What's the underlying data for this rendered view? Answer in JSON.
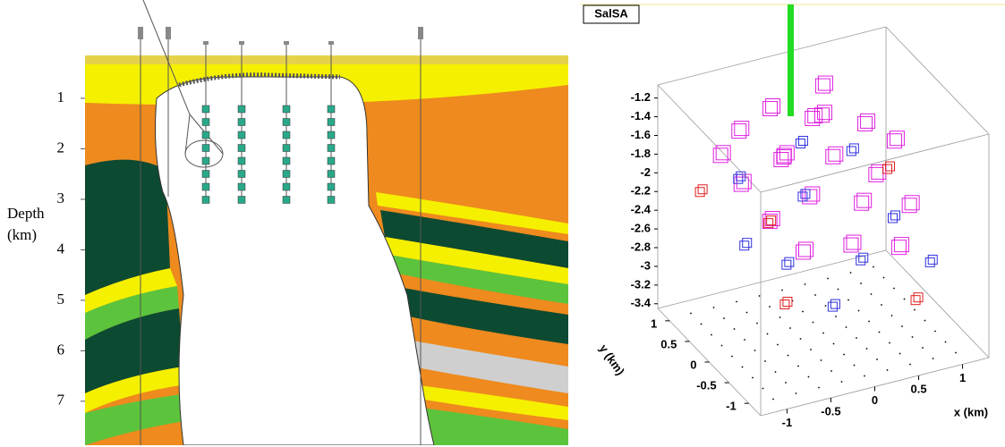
{
  "cross_section": {
    "ylabel_lines": [
      "Depth",
      "(km)"
    ],
    "yticks": [
      1,
      2,
      3,
      4,
      5,
      6,
      7
    ],
    "ylim": [
      0,
      7.8
    ]
  },
  "salsa": {
    "title": "SalSA",
    "xlabel": "x (km)",
    "ylabel": "y (km)",
    "xlim": [
      -1.3,
      1.3
    ],
    "ylim": [
      -1.3,
      1.3
    ],
    "zlim": [
      -3.45,
      -1.06
    ],
    "xticks": [
      -1,
      -0.5,
      0,
      0.5,
      1
    ],
    "yticks": [
      1,
      0.5,
      0,
      -0.5,
      -1
    ],
    "zticks": [
      -1.2,
      -1.4,
      -1.6,
      -1.8,
      -2,
      -2.2,
      -2.4,
      -2.6,
      -2.8,
      -3,
      -3.2,
      -3.4
    ],
    "series": [
      {
        "color": "#e020e0",
        "points": [
          [
            -0.6,
            0.8,
            -1.5
          ],
          [
            -0.2,
            0.9,
            -1.4
          ],
          [
            0.3,
            0.7,
            -1.5
          ],
          [
            0.7,
            0.5,
            -1.6
          ],
          [
            -0.8,
            0.3,
            -1.8
          ],
          [
            -0.3,
            0.4,
            -1.7
          ],
          [
            0.2,
            0.2,
            -1.7
          ],
          [
            0.6,
            0,
            -1.9
          ],
          [
            -0.7,
            -0.2,
            -2
          ],
          [
            -0.2,
            -0.1,
            -1.9
          ],
          [
            0.3,
            -0.3,
            -2
          ],
          [
            0.8,
            -0.4,
            -2.1
          ],
          [
            -0.5,
            -0.6,
            -2.2
          ],
          [
            0,
            -0.7,
            -2.2
          ],
          [
            0.5,
            -0.8,
            -2.3
          ],
          [
            -0.9,
            0.6,
            -1.6
          ],
          [
            0.1,
            0.5,
            -1.4
          ],
          [
            -0.4,
            0.1,
            -1.5
          ],
          [
            0.4,
            0.9,
            -1.3
          ],
          [
            0.9,
            0.2,
            -1.7
          ]
        ]
      },
      {
        "color": "#3030e0",
        "points": [
          [
            -0.7,
            0.6,
            -1.9
          ],
          [
            -0.1,
            0.3,
            -2.1
          ],
          [
            0.5,
            0.4,
            -1.8
          ],
          [
            -0.6,
            -0.4,
            -2.4
          ],
          [
            0.2,
            -0.5,
            -2.5
          ],
          [
            0.7,
            -0.2,
            -2.3
          ],
          [
            -0.3,
            -0.9,
            -2.7
          ],
          [
            0.9,
            -0.7,
            -2.6
          ],
          [
            0.1,
            0.8,
            -1.8
          ],
          [
            -0.9,
            0,
            -2.3
          ]
        ]
      },
      {
        "color": "#e02020",
        "points": [
          [
            -1,
            0.9,
            -2.1
          ],
          [
            -0.8,
            -0.8,
            -2.6
          ],
          [
            0.6,
            -1,
            -2.8
          ],
          [
            1,
            0.6,
            -2.2
          ],
          [
            -0.4,
            0.5,
            -2.4
          ]
        ]
      }
    ]
  }
}
